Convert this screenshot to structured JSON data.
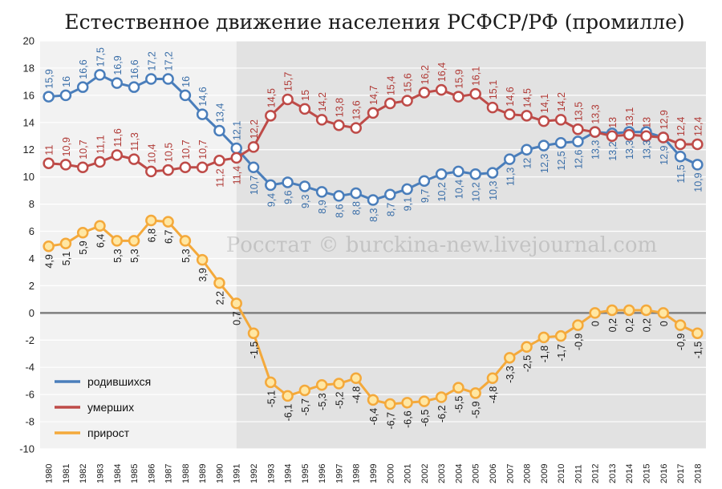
{
  "chart_data": {
    "type": "line",
    "title": "Естественное движение населения РСФСР/РФ (промилле)",
    "watermark": "Росстат © burckina-new.livejournal.com",
    "ylim": [
      -10,
      20
    ],
    "yticks": [
      -10,
      -8,
      -6,
      -4,
      -2,
      0,
      2,
      4,
      6,
      8,
      10,
      12,
      14,
      16,
      18,
      20
    ],
    "grid": true,
    "legend_position": "bottom-left",
    "shaded_from": "1991",
    "categories": [
      "1980",
      "1981",
      "1982",
      "1983",
      "1984",
      "1985",
      "1986",
      "1987",
      "1988",
      "1989",
      "1990",
      "1991",
      "1992",
      "1993",
      "1994",
      "1995",
      "1996",
      "1997",
      "1998",
      "1999",
      "2000",
      "2001",
      "2002",
      "2003",
      "2004",
      "2005",
      "2006",
      "2007",
      "2008",
      "2009",
      "2010",
      "2011",
      "2012",
      "2013",
      "2014",
      "2015",
      "2016",
      "2017",
      "2018"
    ],
    "series": [
      {
        "name": "родившихся",
        "color": "#4a7ebb",
        "values": [
          15.9,
          16,
          16.6,
          17.5,
          16.9,
          16.6,
          17.2,
          17.2,
          16,
          14.6,
          13.4,
          12.1,
          10.7,
          9.4,
          9.6,
          9.3,
          8.9,
          8.6,
          8.8,
          8.3,
          8.7,
          9.1,
          9.7,
          10.2,
          10.4,
          10.2,
          10.3,
          11.3,
          12,
          12.3,
          12.5,
          12.6,
          13.3,
          13.2,
          13.3,
          13.3,
          12.9,
          11.5,
          10.9
        ],
        "labels": [
          "15,9",
          "16",
          "16,6",
          "17,5",
          "16,9",
          "16,6",
          "17,2",
          "17,2",
          "16",
          "14,6",
          "13,4",
          "12,1",
          "10,7",
          "9,4",
          "9,6",
          "9,3",
          "8,9",
          "8,6",
          "8,8",
          "8,3",
          "8,7",
          "9,1",
          "9,7",
          "10,2",
          "10,4",
          "10,2",
          "10,3",
          "11,3",
          "12",
          "12,3",
          "12,5",
          "12,6",
          "13,3",
          "13,2",
          "13,3",
          "13,3",
          "12,9",
          "11,5",
          "10,9"
        ]
      },
      {
        "name": "умерших",
        "color": "#be4b48",
        "values": [
          11,
          10.9,
          10.7,
          11.1,
          11.6,
          11.3,
          10.4,
          10.5,
          10.7,
          10.7,
          11.2,
          11.4,
          12.2,
          14.5,
          15.7,
          15,
          14.2,
          13.8,
          13.6,
          14.7,
          15.4,
          15.6,
          16.2,
          16.4,
          15.9,
          16.1,
          15.1,
          14.6,
          14.5,
          14.1,
          14.2,
          13.5,
          13.3,
          13,
          13.1,
          13,
          12.9,
          12.4,
          12.4
        ],
        "labels": [
          "11",
          "10,9",
          "10,7",
          "11,1",
          "11,6",
          "11,3",
          "10,4",
          "10,5",
          "10,7",
          "10,7",
          "11,2",
          "11,4",
          "12,2",
          "14,5",
          "15,7",
          "15",
          "14,2",
          "13,8",
          "13,6",
          "14,7",
          "15,4",
          "15,6",
          "16,2",
          "16,4",
          "15,9",
          "16,1",
          "15,1",
          "14,6",
          "14,5",
          "14,1",
          "14,2",
          "13,5",
          "13,3",
          "13",
          "13,1",
          "13",
          "12,9",
          "12,4",
          "12,4"
        ]
      },
      {
        "name": "прирост",
        "color": "#f4a93b",
        "values": [
          4.9,
          5.1,
          5.9,
          6.4,
          5.3,
          5.3,
          6.8,
          6.7,
          5.3,
          3.9,
          2.2,
          0.7,
          -1.5,
          -5.1,
          -6.1,
          -5.7,
          -5.3,
          -5.2,
          -4.8,
          -6.4,
          -6.7,
          -6.6,
          -6.5,
          -6.2,
          -5.5,
          -5.9,
          -4.8,
          -3.3,
          -2.5,
          -1.8,
          -1.7,
          -0.9,
          0,
          0.2,
          0.2,
          0.2,
          0,
          -0.9,
          -1.5
        ],
        "labels": [
          "4,9",
          "5,1",
          "5,9",
          "6,4",
          "5,3",
          "5,3",
          "6,8",
          "6,7",
          "5,3",
          "3,9",
          "2,2",
          "0,7",
          "-1,5",
          "-5,1",
          "-6,1",
          "-5,7",
          "-5,3",
          "-5,2",
          "-4,8",
          "-6,4",
          "-6,7",
          "-6,6",
          "-6,5",
          "-6,2",
          "-5,5",
          "-5,9",
          "-4,8",
          "-3,3",
          "-2,5",
          "-1,8",
          "-1,7",
          "-0,9",
          "0",
          "0,2",
          "0,2",
          "0,2",
          "0",
          "-0,9",
          "-1,5"
        ]
      }
    ]
  }
}
